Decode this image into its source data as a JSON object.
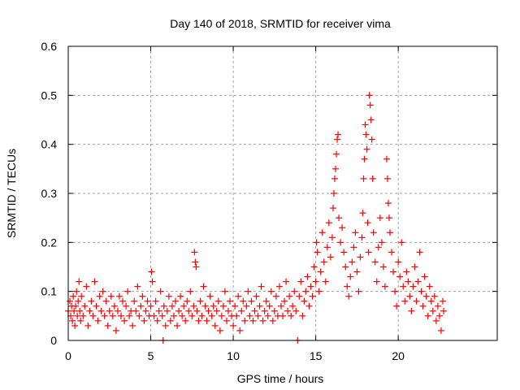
{
  "chart_data": {
    "type": "scatter",
    "title": "Day 140 of 2018, SRMTID for receiver vima",
    "xlabel": "GPS time / hours",
    "ylabel": "SRMTID / TECUs",
    "xlim": [
      0,
      26
    ],
    "ylim": [
      0,
      0.6
    ],
    "xticks": [
      0,
      5,
      10,
      15,
      20
    ],
    "xtick_labels": [
      "0",
      "5",
      "10",
      "15",
      "20"
    ],
    "yticks": [
      0,
      0.1,
      0.2,
      0.3,
      0.4,
      0.5,
      0.6
    ],
    "ytick_labels": [
      "0",
      "0.1",
      "0.2",
      "0.3",
      "0.4",
      "0.5",
      "0.6"
    ],
    "grid": true,
    "marker": "plus",
    "color": "#ff0000",
    "series": [
      {
        "name": "SRMTID",
        "points": [
          [
            0.0,
            0.06
          ],
          [
            0.1,
            0.08
          ],
          [
            0.15,
            0.05
          ],
          [
            0.2,
            0.07
          ],
          [
            0.25,
            0.04
          ],
          [
            0.3,
            0.09
          ],
          [
            0.35,
            0.06
          ],
          [
            0.4,
            0.03
          ],
          [
            0.45,
            0.07
          ],
          [
            0.5,
            0.1
          ],
          [
            0.55,
            0.05
          ],
          [
            0.6,
            0.08
          ],
          [
            0.65,
            0.12
          ],
          [
            0.7,
            0.06
          ],
          [
            0.75,
            0.04
          ],
          [
            0.8,
            0.09
          ],
          [
            0.9,
            0.05
          ],
          [
            1.0,
            0.07
          ],
          [
            1.1,
            0.11
          ],
          [
            1.2,
            0.03
          ],
          [
            1.3,
            0.06
          ],
          [
            1.4,
            0.08
          ],
          [
            1.5,
            0.05
          ],
          [
            1.6,
            0.12
          ],
          [
            1.7,
            0.07
          ],
          [
            1.8,
            0.04
          ],
          [
            1.9,
            0.09
          ],
          [
            2.0,
            0.06
          ],
          [
            2.1,
            0.1
          ],
          [
            2.2,
            0.05
          ],
          [
            2.3,
            0.08
          ],
          [
            2.4,
            0.03
          ],
          [
            2.5,
            0.06
          ],
          [
            2.6,
            0.09
          ],
          [
            2.7,
            0.05
          ],
          [
            2.8,
            0.07
          ],
          [
            2.9,
            0.02
          ],
          [
            3.0,
            0.06
          ],
          [
            3.1,
            0.09
          ],
          [
            3.2,
            0.05
          ],
          [
            3.3,
            0.08
          ],
          [
            3.4,
            0.04
          ],
          [
            3.5,
            0.07
          ],
          [
            3.6,
            0.1
          ],
          [
            3.7,
            0.05
          ],
          [
            3.8,
            0.06
          ],
          [
            3.9,
            0.03
          ],
          [
            4.0,
            0.08
          ],
          [
            4.1,
            0.06
          ],
          [
            4.2,
            0.11
          ],
          [
            4.3,
            0.05
          ],
          [
            4.4,
            0.07
          ],
          [
            4.5,
            0.09
          ],
          [
            4.6,
            0.04
          ],
          [
            4.7,
            0.06
          ],
          [
            4.8,
            0.08
          ],
          [
            4.9,
            0.05
          ],
          [
            5.0,
            0.07
          ],
          [
            5.05,
            0.14
          ],
          [
            5.1,
            0.12
          ],
          [
            5.2,
            0.05
          ],
          [
            5.3,
            0.08
          ],
          [
            5.4,
            0.04
          ],
          [
            5.5,
            0.06
          ],
          [
            5.6,
            0.1
          ],
          [
            5.7,
            0.05
          ],
          [
            5.75,
            0.0
          ],
          [
            5.8,
            0.07
          ],
          [
            5.9,
            0.03
          ],
          [
            6.0,
            0.06
          ],
          [
            6.1,
            0.09
          ],
          [
            6.2,
            0.04
          ],
          [
            6.3,
            0.07
          ],
          [
            6.4,
            0.05
          ],
          [
            6.5,
            0.08
          ],
          [
            6.6,
            0.03
          ],
          [
            6.7,
            0.06
          ],
          [
            6.8,
            0.09
          ],
          [
            6.9,
            0.05
          ],
          [
            7.0,
            0.07
          ],
          [
            7.1,
            0.04
          ],
          [
            7.2,
            0.08
          ],
          [
            7.3,
            0.06
          ],
          [
            7.4,
            0.1
          ],
          [
            7.5,
            0.05
          ],
          [
            7.6,
            0.07
          ],
          [
            7.65,
            0.18
          ],
          [
            7.7,
            0.16
          ],
          [
            7.75,
            0.15
          ],
          [
            7.8,
            0.06
          ],
          [
            7.9,
            0.04
          ],
          [
            8.0,
            0.08
          ],
          [
            8.1,
            0.05
          ],
          [
            8.2,
            0.11
          ],
          [
            8.3,
            0.07
          ],
          [
            8.4,
            0.04
          ],
          [
            8.5,
            0.06
          ],
          [
            8.6,
            0.09
          ],
          [
            8.7,
            0.05
          ],
          [
            8.8,
            0.07
          ],
          [
            8.9,
            0.03
          ],
          [
            9.0,
            0.06
          ],
          [
            9.1,
            0.08
          ],
          [
            9.2,
            0.02
          ],
          [
            9.3,
            0.05
          ],
          [
            9.4,
            0.07
          ],
          [
            9.5,
            0.1
          ],
          [
            9.6,
            0.04
          ],
          [
            9.7,
            0.06
          ],
          [
            9.8,
            0.08
          ],
          [
            9.9,
            0.05
          ],
          [
            10.0,
            0.03
          ],
          [
            10.1,
            0.07
          ],
          [
            10.2,
            0.05
          ],
          [
            10.3,
            0.09
          ],
          [
            10.4,
            0.02
          ],
          [
            10.5,
            0.06
          ],
          [
            10.6,
            0.08
          ],
          [
            10.7,
            0.04
          ],
          [
            10.8,
            0.07
          ],
          [
            10.9,
            0.1
          ],
          [
            11.0,
            0.05
          ],
          [
            11.1,
            0.08
          ],
          [
            11.2,
            0.04
          ],
          [
            11.3,
            0.06
          ],
          [
            11.4,
            0.09
          ],
          [
            11.5,
            0.05
          ],
          [
            11.6,
            0.07
          ],
          [
            11.7,
            0.11
          ],
          [
            11.8,
            0.04
          ],
          [
            11.9,
            0.06
          ],
          [
            12.0,
            0.08
          ],
          [
            12.1,
            0.05
          ],
          [
            12.2,
            0.07
          ],
          [
            12.3,
            0.1
          ],
          [
            12.4,
            0.04
          ],
          [
            12.5,
            0.06
          ],
          [
            12.6,
            0.09
          ],
          [
            12.7,
            0.05
          ],
          [
            12.8,
            0.11
          ],
          [
            12.9,
            0.07
          ],
          [
            13.0,
            0.05
          ],
          [
            13.1,
            0.08
          ],
          [
            13.2,
            0.12
          ],
          [
            13.3,
            0.06
          ],
          [
            13.4,
            0.09
          ],
          [
            13.5,
            0.05
          ],
          [
            13.6,
            0.07
          ],
          [
            13.7,
            0.1
          ],
          [
            13.8,
            0.06
          ],
          [
            13.9,
            0.0
          ],
          [
            14.0,
            0.09
          ],
          [
            14.1,
            0.12
          ],
          [
            14.2,
            0.05
          ],
          [
            14.3,
            0.08
          ],
          [
            14.4,
            0.1
          ],
          [
            14.5,
            0.13
          ],
          [
            14.6,
            0.07
          ],
          [
            14.7,
            0.11
          ],
          [
            14.8,
            0.09
          ],
          [
            14.9,
            0.15
          ],
          [
            15.0,
            0.12
          ],
          [
            15.05,
            0.2
          ],
          [
            15.1,
            0.18
          ],
          [
            15.2,
            0.1
          ],
          [
            15.3,
            0.14
          ],
          [
            15.4,
            0.22
          ],
          [
            15.5,
            0.16
          ],
          [
            15.6,
            0.12
          ],
          [
            15.7,
            0.19
          ],
          [
            15.8,
            0.24
          ],
          [
            15.9,
            0.17
          ],
          [
            16.0,
            0.21
          ],
          [
            16.05,
            0.27
          ],
          [
            16.1,
            0.3
          ],
          [
            16.15,
            0.33
          ],
          [
            16.2,
            0.35
          ],
          [
            16.25,
            0.38
          ],
          [
            16.3,
            0.41
          ],
          [
            16.35,
            0.42
          ],
          [
            16.4,
            0.25
          ],
          [
            16.5,
            0.2
          ],
          [
            16.6,
            0.23
          ],
          [
            16.7,
            0.18
          ],
          [
            16.8,
            0.15
          ],
          [
            16.9,
            0.11
          ],
          [
            17.0,
            0.09
          ],
          [
            17.1,
            0.13
          ],
          [
            17.2,
            0.16
          ],
          [
            17.3,
            0.19
          ],
          [
            17.4,
            0.22
          ],
          [
            17.5,
            0.14
          ],
          [
            17.6,
            0.1
          ],
          [
            17.7,
            0.17
          ],
          [
            17.8,
            0.21
          ],
          [
            17.85,
            0.26
          ],
          [
            17.9,
            0.33
          ],
          [
            17.95,
            0.37
          ],
          [
            18.0,
            0.44
          ],
          [
            18.05,
            0.42
          ],
          [
            18.1,
            0.39
          ],
          [
            18.15,
            0.24
          ],
          [
            18.2,
            0.18
          ],
          [
            18.25,
            0.5
          ],
          [
            18.3,
            0.48
          ],
          [
            18.35,
            0.45
          ],
          [
            18.4,
            0.41
          ],
          [
            18.45,
            0.33
          ],
          [
            18.5,
            0.22
          ],
          [
            18.6,
            0.16
          ],
          [
            18.7,
            0.12
          ],
          [
            18.8,
            0.19
          ],
          [
            18.9,
            0.25
          ],
          [
            19.0,
            0.2
          ],
          [
            19.1,
            0.15
          ],
          [
            19.2,
            0.11
          ],
          [
            19.3,
            0.37
          ],
          [
            19.35,
            0.33
          ],
          [
            19.4,
            0.28
          ],
          [
            19.45,
            0.25
          ],
          [
            19.5,
            0.22
          ],
          [
            19.6,
            0.18
          ],
          [
            19.7,
            0.14
          ],
          [
            19.8,
            0.1
          ],
          [
            19.9,
            0.07
          ],
          [
            20.0,
            0.16
          ],
          [
            20.1,
            0.13
          ],
          [
            20.2,
            0.2
          ],
          [
            20.3,
            0.11
          ],
          [
            20.4,
            0.08
          ],
          [
            20.5,
            0.14
          ],
          [
            20.6,
            0.12
          ],
          [
            20.7,
            0.09
          ],
          [
            20.8,
            0.06
          ],
          [
            20.9,
            0.11
          ],
          [
            21.0,
            0.15
          ],
          [
            21.1,
            0.08
          ],
          [
            21.2,
            0.12
          ],
          [
            21.3,
            0.18
          ],
          [
            21.4,
            0.1
          ],
          [
            21.5,
            0.07
          ],
          [
            21.6,
            0.13
          ],
          [
            21.7,
            0.09
          ],
          [
            21.8,
            0.05
          ],
          [
            21.9,
            0.11
          ],
          [
            22.0,
            0.08
          ],
          [
            22.1,
            0.06
          ],
          [
            22.2,
            0.09
          ],
          [
            22.3,
            0.04
          ],
          [
            22.4,
            0.07
          ],
          [
            22.5,
            0.05
          ],
          [
            22.6,
            0.02
          ],
          [
            22.7,
            0.08
          ],
          [
            22.75,
            0.06
          ]
        ]
      }
    ]
  }
}
